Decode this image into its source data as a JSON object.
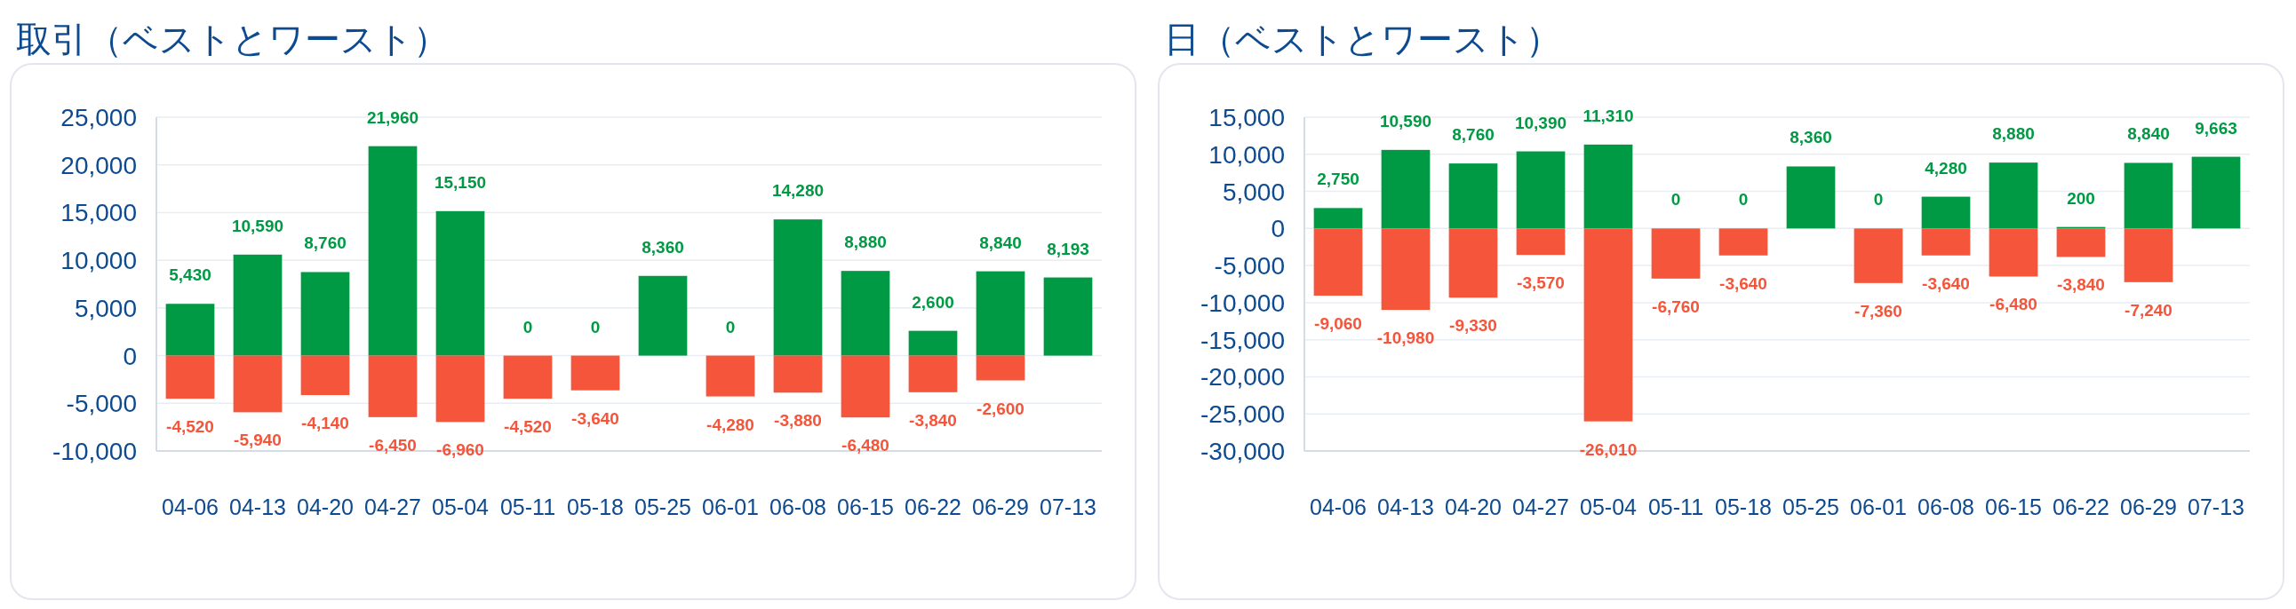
{
  "chart_data": [
    {
      "type": "bar",
      "title": "取引（ベストとワースト）",
      "grid": "y",
      "stacked": true,
      "categories": [
        "04-06",
        "04-13",
        "04-20",
        "04-27",
        "05-04",
        "05-11",
        "05-18",
        "05-25",
        "06-01",
        "06-08",
        "06-15",
        "06-22",
        "06-29",
        "07-13"
      ],
      "ylim": [
        -10000,
        25000
      ],
      "yticks": [
        {
          "value": -10000,
          "label": "-10,000"
        },
        {
          "value": -5000,
          "label": "-5,000"
        },
        0,
        {
          "value": 5000,
          "label": "5,000"
        },
        {
          "value": 10000,
          "label": "10,000"
        },
        {
          "value": 15000,
          "label": "15,000"
        },
        {
          "value": 20000,
          "label": "20,000"
        },
        {
          "value": 25000,
          "label": "25,000"
        }
      ],
      "series": [
        {
          "color": "#009a44",
          "values": [
            5430,
            10590,
            8760,
            21960,
            15150,
            0,
            0,
            8360,
            0,
            14280,
            8880,
            2600,
            8840,
            8193
          ],
          "value_labels": [
            "5,430",
            "10,590",
            "8,760",
            "21,960",
            "15,150",
            "0",
            "0",
            "8,360",
            "0",
            "14,280",
            "8,880",
            "2,600",
            "8,840",
            "8,193"
          ]
        },
        {
          "color": "#f5553a",
          "values": [
            -4520,
            -5940,
            -4140,
            -6450,
            -6960,
            -4520,
            -3640,
            null,
            -4280,
            -3880,
            -6480,
            -3840,
            -2600,
            null
          ],
          "value_labels": [
            "-4,520",
            "-5,940",
            "-4,140",
            "-6,450",
            "-6,960",
            "-4,520",
            "-3,640",
            null,
            "-4,280",
            "-3,880",
            "-6,480",
            "-3,840",
            "-2,600",
            null
          ]
        }
      ]
    },
    {
      "type": "bar",
      "title": "日（ベストとワースト）",
      "grid": "y",
      "stacked": true,
      "categories": [
        "04-06",
        "04-13",
        "04-20",
        "04-27",
        "05-04",
        "05-11",
        "05-18",
        "05-25",
        "06-01",
        "06-08",
        "06-15",
        "06-22",
        "06-29",
        "07-13"
      ],
      "ylim": [
        -30000,
        15000
      ],
      "yticks": [
        {
          "value": -30000,
          "label": "-30,000"
        },
        {
          "value": -25000,
          "label": "-25,000"
        },
        {
          "value": -20000,
          "label": "-20,000"
        },
        {
          "value": -15000,
          "label": "-15,000"
        },
        {
          "value": -10000,
          "label": "-10,000"
        },
        {
          "value": -5000,
          "label": "-5,000"
        },
        0,
        {
          "value": 5000,
          "label": "5,000"
        },
        {
          "value": 10000,
          "label": "10,000"
        },
        {
          "value": 15000,
          "label": "15,000"
        }
      ],
      "series": [
        {
          "color": "#009a44",
          "values": [
            2750,
            10590,
            8760,
            10390,
            11310,
            0,
            0,
            8360,
            0,
            4280,
            8880,
            200,
            8840,
            9663
          ],
          "value_labels": [
            "2,750",
            "10,590",
            "8,760",
            "10,390",
            "11,310",
            "0",
            "0",
            "8,360",
            "0",
            "4,280",
            "8,880",
            "200",
            "8,840",
            "9,663"
          ]
        },
        {
          "color": "#f5553a",
          "values": [
            -9060,
            -10980,
            -9330,
            -3570,
            -26010,
            -6760,
            -3640,
            null,
            -7360,
            -3640,
            -6480,
            -3840,
            -7240,
            null
          ],
          "value_labels": [
            "-9,060",
            "-10,980",
            "-9,330",
            "-3,570",
            "-26,010",
            "-6,760",
            "-3,640",
            null,
            "-7,360",
            "-3,640",
            "-6,480",
            "-3,840",
            "-7,240",
            null
          ]
        }
      ]
    }
  ]
}
